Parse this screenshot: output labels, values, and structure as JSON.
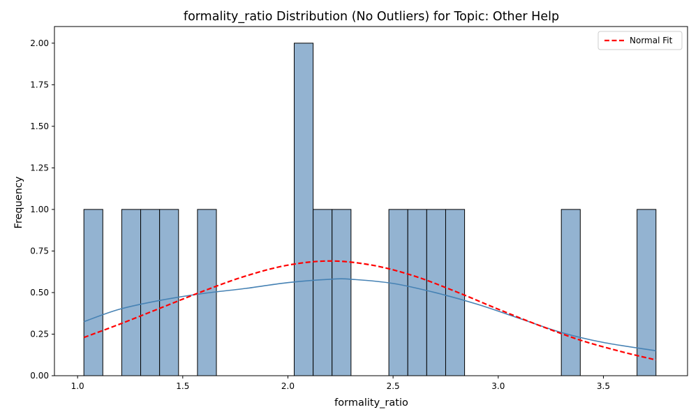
{
  "chart_data": {
    "type": "bar",
    "title": "formality_ratio Distribution (No Outliers) for Topic: Other Help",
    "xlabel": "formality_ratio",
    "ylabel": "Frequency",
    "xlim": [
      0.89,
      3.9
    ],
    "ylim": [
      0,
      2.1
    ],
    "xticks": [
      "1.0",
      "1.5",
      "2.0",
      "2.5",
      "3.0",
      "3.5"
    ],
    "yticks": [
      "0.00",
      "0.25",
      "0.50",
      "0.75",
      "1.00",
      "1.25",
      "1.50",
      "1.75",
      "2.00"
    ],
    "bins": [
      {
        "x0": 1.03,
        "x1": 1.12,
        "count": 1
      },
      {
        "x0": 1.21,
        "x1": 1.3,
        "count": 1
      },
      {
        "x0": 1.3,
        "x1": 1.39,
        "count": 1
      },
      {
        "x0": 1.39,
        "x1": 1.48,
        "count": 1
      },
      {
        "x0": 1.57,
        "x1": 1.66,
        "count": 1
      },
      {
        "x0": 2.03,
        "x1": 2.12,
        "count": 2
      },
      {
        "x0": 2.12,
        "x1": 2.21,
        "count": 1
      },
      {
        "x0": 2.21,
        "x1": 2.3,
        "count": 1
      },
      {
        "x0": 2.48,
        "x1": 2.57,
        "count": 1
      },
      {
        "x0": 2.57,
        "x1": 2.66,
        "count": 1
      },
      {
        "x0": 2.66,
        "x1": 2.75,
        "count": 1
      },
      {
        "x0": 2.75,
        "x1": 2.84,
        "count": 1
      },
      {
        "x0": 3.3,
        "x1": 3.39,
        "count": 1
      },
      {
        "x0": 3.66,
        "x1": 3.75,
        "count": 1
      }
    ],
    "series": [
      {
        "name": "",
        "kind": "kde",
        "x": [
          1.03,
          1.2,
          1.4,
          1.6,
          1.8,
          2.0,
          2.2,
          2.3,
          2.5,
          2.7,
          2.9,
          3.1,
          3.3,
          3.5,
          3.75
        ],
        "values": [
          0.325,
          0.4,
          0.455,
          0.495,
          0.525,
          0.56,
          0.58,
          0.58,
          0.555,
          0.5,
          0.43,
          0.345,
          0.26,
          0.2,
          0.15
        ]
      },
      {
        "name": "Normal Fit",
        "kind": "normal",
        "x": [
          1.03,
          1.2,
          1.4,
          1.6,
          1.8,
          2.0,
          2.2,
          2.4,
          2.6,
          2.8,
          3.0,
          3.2,
          3.4,
          3.6,
          3.75
        ],
        "values": [
          0.23,
          0.31,
          0.41,
          0.51,
          0.6,
          0.665,
          0.69,
          0.665,
          0.6,
          0.505,
          0.4,
          0.3,
          0.21,
          0.14,
          0.095
        ]
      }
    ],
    "legend": {
      "entries": [
        "Normal Fit"
      ],
      "position": "top-right"
    },
    "colors": {
      "bar_fill": "#93b3d1",
      "bar_edge": "#000000",
      "kde_line": "#4682b4",
      "normal_line": "#ff0000"
    },
    "grid": false
  }
}
